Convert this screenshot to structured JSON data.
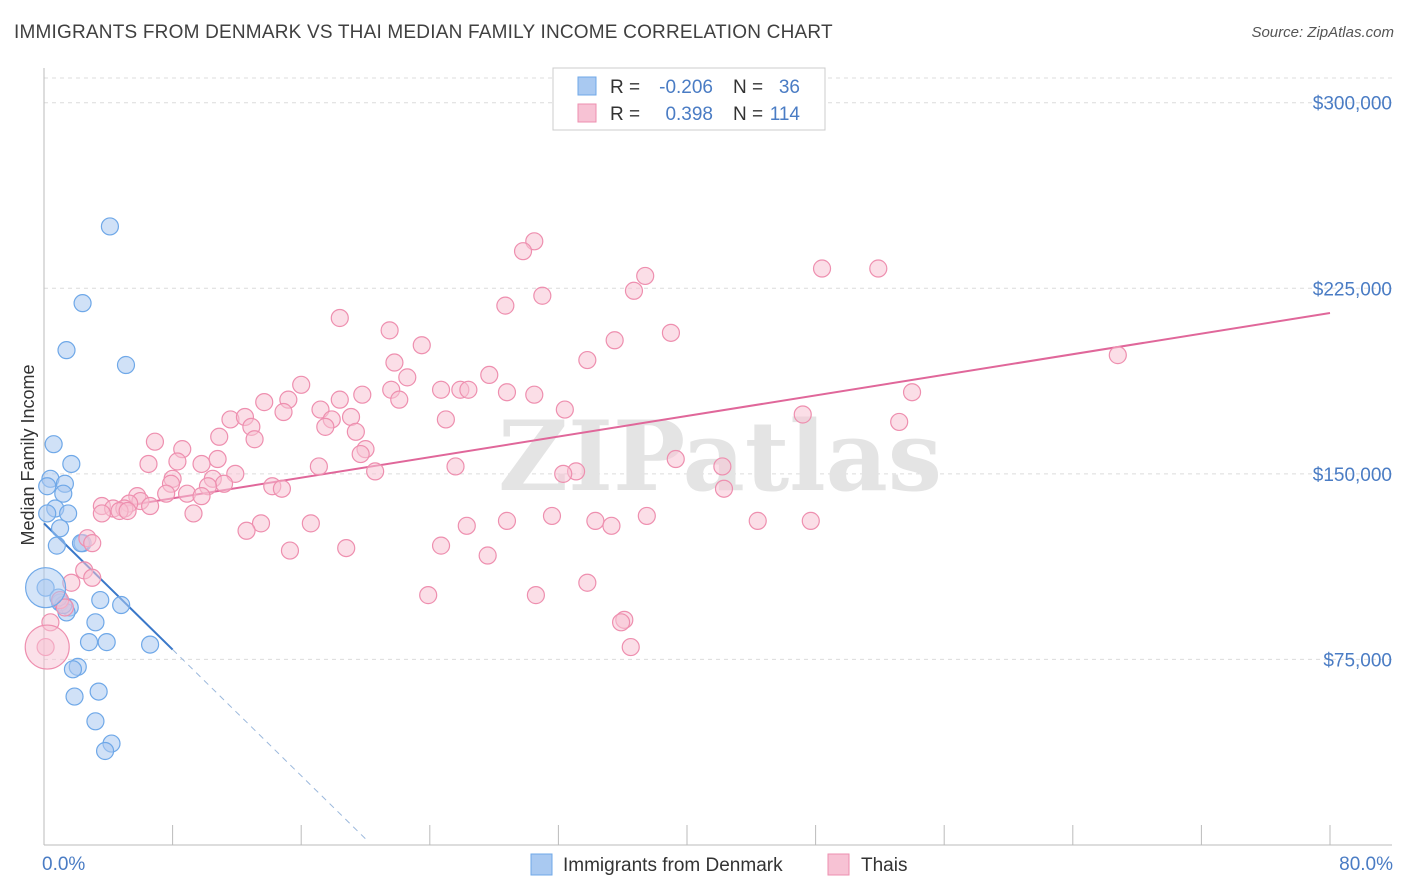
{
  "chart_data": {
    "type": "scatter",
    "title": "IMMIGRANTS FROM DENMARK VS THAI MEDIAN FAMILY INCOME CORRELATION CHART",
    "source": "Source: ZipAtlas.com",
    "xlabel": "",
    "ylabel": "Median Family Income",
    "xlim": [
      0,
      80
    ],
    "ylim": [
      0,
      310000
    ],
    "x_tick_labels": [
      {
        "value": 0,
        "label": "0.0%"
      },
      {
        "value": 80,
        "label": "80.0%"
      }
    ],
    "y_ticks": [
      {
        "value": 75000,
        "label": "$75,000"
      },
      {
        "value": 150000,
        "label": "$150,000"
      },
      {
        "value": 225000,
        "label": "$225,000"
      },
      {
        "value": 300000,
        "label": "$300,000"
      }
    ],
    "grid": true,
    "watermark": "ZIPatlas",
    "legend_stats": [
      {
        "series": "Immigrants from Denmark",
        "r_label": "R =",
        "r_value": "-0.206",
        "n_label": "N =",
        "n_value": "36"
      },
      {
        "series": "Thais",
        "r_label": "R =",
        "r_value": "0.398",
        "n_label": "N =",
        "n_value": "114"
      }
    ],
    "series": [
      {
        "name": "Immigrants from Denmark",
        "color": "#6fa8e8",
        "fill": "#a9c9f1",
        "line_color": "#3a78c9",
        "trend": {
          "x0": 0,
          "y0": 130000,
          "x1": 8,
          "y1": 79000,
          "dash_x_end": 20
        },
        "points": [
          [
            4.1,
            250000
          ],
          [
            2.4,
            219000
          ],
          [
            1.4,
            200000
          ],
          [
            5.1,
            194000
          ],
          [
            0.6,
            162000
          ],
          [
            1.7,
            154000
          ],
          [
            0.4,
            148000
          ],
          [
            1.3,
            146000
          ],
          [
            0.2,
            145000
          ],
          [
            1.2,
            142000
          ],
          [
            0.7,
            136000
          ],
          [
            1.5,
            134000
          ],
          [
            0.2,
            134000
          ],
          [
            1.0,
            128000
          ],
          [
            2.4,
            122000
          ],
          [
            2.3,
            122000
          ],
          [
            0.8,
            121000
          ],
          [
            0.1,
            104000
          ],
          [
            3.5,
            99000
          ],
          [
            1.0,
            98000
          ],
          [
            4.8,
            97000
          ],
          [
            1.6,
            96000
          ],
          [
            1.4,
            94000
          ],
          [
            3.2,
            90000
          ],
          [
            2.8,
            82000
          ],
          [
            3.9,
            82000
          ],
          [
            6.6,
            81000
          ],
          [
            2.1,
            72000
          ],
          [
            1.8,
            71000
          ],
          [
            3.4,
            62000
          ],
          [
            1.9,
            60000
          ],
          [
            3.2,
            50000
          ],
          [
            4.2,
            41000
          ],
          [
            3.8,
            38000
          ],
          [
            1.2,
            97000
          ],
          [
            0.9,
            100000
          ]
        ]
      },
      {
        "name": "Thais",
        "color": "#ee8faf",
        "fill": "#f7c2d4",
        "line_color": "#e0679a",
        "trend": {
          "x0": 5,
          "y0": 137000,
          "x1": 80,
          "y1": 215000
        },
        "points": [
          [
            30.5,
            244000
          ],
          [
            29.8,
            240000
          ],
          [
            48.4,
            233000
          ],
          [
            51.9,
            233000
          ],
          [
            37.4,
            230000
          ],
          [
            31.0,
            222000
          ],
          [
            36.7,
            224000
          ],
          [
            28.7,
            218000
          ],
          [
            18.4,
            213000
          ],
          [
            21.5,
            208000
          ],
          [
            35.5,
            204000
          ],
          [
            23.5,
            202000
          ],
          [
            39.0,
            207000
          ],
          [
            33.8,
            196000
          ],
          [
            21.8,
            195000
          ],
          [
            66.8,
            198000
          ],
          [
            27.7,
            190000
          ],
          [
            22.6,
            189000
          ],
          [
            16.0,
            186000
          ],
          [
            24.7,
            184000
          ],
          [
            21.6,
            184000
          ],
          [
            25.9,
            184000
          ],
          [
            26.4,
            184000
          ],
          [
            28.8,
            183000
          ],
          [
            30.5,
            182000
          ],
          [
            19.8,
            182000
          ],
          [
            15.2,
            180000
          ],
          [
            22.1,
            180000
          ],
          [
            18.4,
            180000
          ],
          [
            13.7,
            179000
          ],
          [
            17.2,
            176000
          ],
          [
            32.4,
            176000
          ],
          [
            11.6,
            172000
          ],
          [
            12.5,
            173000
          ],
          [
            19.1,
            173000
          ],
          [
            25.0,
            172000
          ],
          [
            17.9,
            172000
          ],
          [
            14.9,
            175000
          ],
          [
            47.2,
            174000
          ],
          [
            54.0,
            183000
          ],
          [
            53.2,
            171000
          ],
          [
            12.9,
            169000
          ],
          [
            17.5,
            169000
          ],
          [
            19.4,
            167000
          ],
          [
            10.9,
            165000
          ],
          [
            13.1,
            164000
          ],
          [
            6.9,
            163000
          ],
          [
            8.6,
            160000
          ],
          [
            20.0,
            160000
          ],
          [
            19.7,
            158000
          ],
          [
            39.3,
            156000
          ],
          [
            10.8,
            156000
          ],
          [
            8.3,
            155000
          ],
          [
            6.5,
            154000
          ],
          [
            9.8,
            154000
          ],
          [
            17.1,
            153000
          ],
          [
            25.6,
            153000
          ],
          [
            42.2,
            153000
          ],
          [
            20.6,
            151000
          ],
          [
            11.9,
            150000
          ],
          [
            33.1,
            151000
          ],
          [
            32.3,
            150000
          ],
          [
            8.0,
            148000
          ],
          [
            7.9,
            146000
          ],
          [
            10.5,
            148000
          ],
          [
            11.2,
            146000
          ],
          [
            14.2,
            145000
          ],
          [
            14.8,
            144000
          ],
          [
            10.2,
            145000
          ],
          [
            8.9,
            142000
          ],
          [
            9.8,
            141000
          ],
          [
            7.6,
            142000
          ],
          [
            5.8,
            141000
          ],
          [
            6.0,
            139000
          ],
          [
            5.3,
            138000
          ],
          [
            6.6,
            137000
          ],
          [
            3.6,
            137000
          ],
          [
            4.3,
            136000
          ],
          [
            5.0,
            136000
          ],
          [
            4.7,
            135000
          ],
          [
            3.6,
            134000
          ],
          [
            5.2,
            135000
          ],
          [
            9.3,
            134000
          ],
          [
            13.5,
            130000
          ],
          [
            12.6,
            127000
          ],
          [
            16.6,
            130000
          ],
          [
            26.3,
            129000
          ],
          [
            28.8,
            131000
          ],
          [
            31.6,
            133000
          ],
          [
            37.5,
            133000
          ],
          [
            34.3,
            131000
          ],
          [
            35.3,
            129000
          ],
          [
            44.4,
            131000
          ],
          [
            47.7,
            131000
          ],
          [
            42.3,
            144000
          ],
          [
            2.7,
            124000
          ],
          [
            3.0,
            122000
          ],
          [
            24.7,
            121000
          ],
          [
            18.8,
            120000
          ],
          [
            15.3,
            119000
          ],
          [
            27.6,
            117000
          ],
          [
            2.5,
            111000
          ],
          [
            3.0,
            108000
          ],
          [
            1.7,
            106000
          ],
          [
            33.8,
            106000
          ],
          [
            23.9,
            101000
          ],
          [
            30.6,
            101000
          ],
          [
            1.0,
            99000
          ],
          [
            1.3,
            96000
          ],
          [
            36.1,
            91000
          ],
          [
            35.9,
            90000
          ],
          [
            36.5,
            80000
          ],
          [
            0.4,
            90000
          ],
          [
            0.1,
            80000
          ]
        ]
      }
    ]
  }
}
